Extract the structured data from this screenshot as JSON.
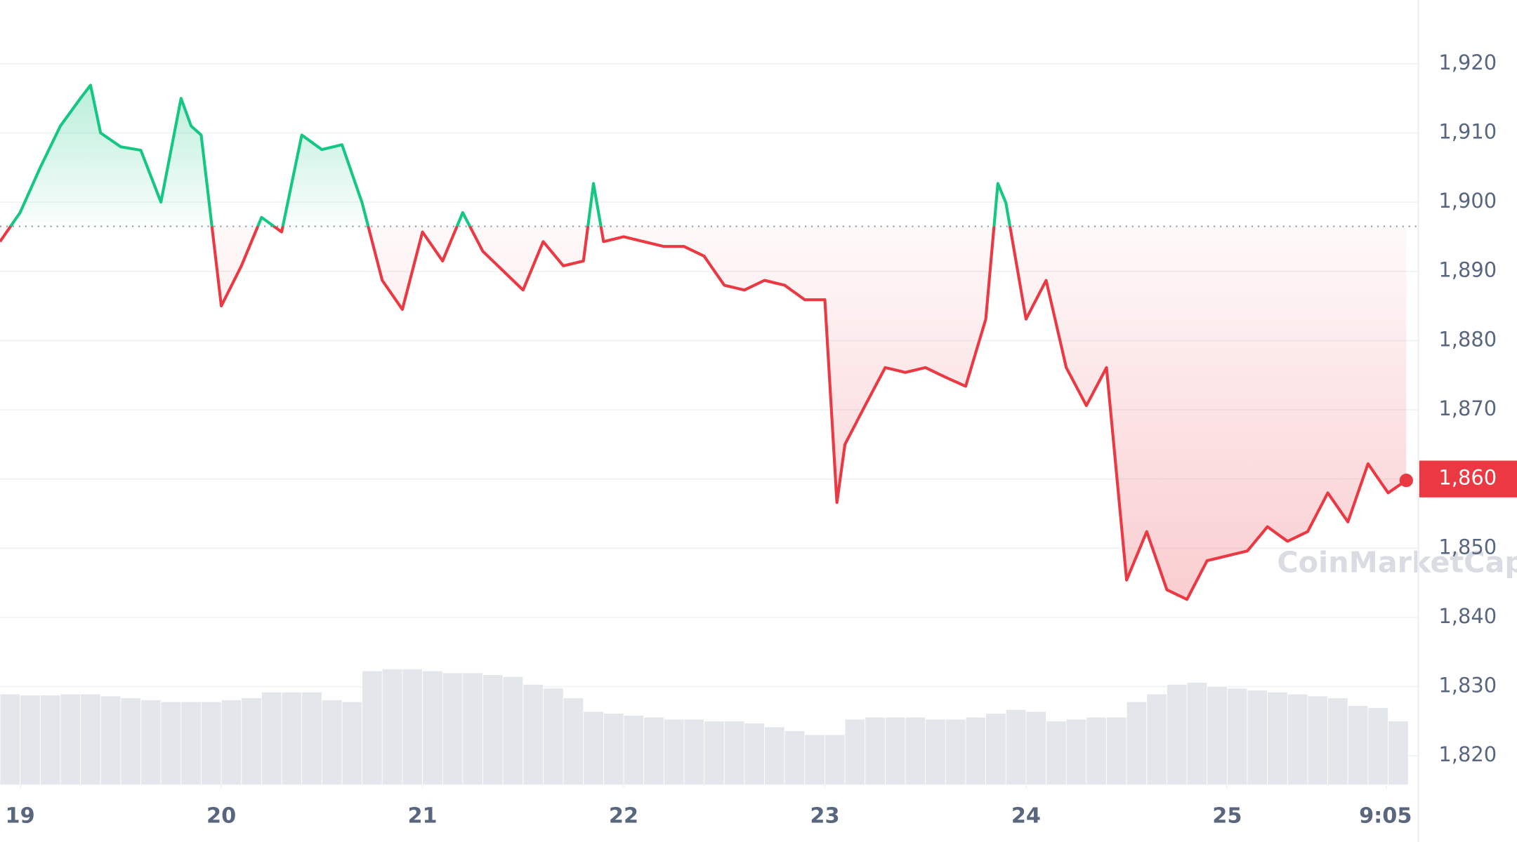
{
  "chart_data": {
    "type": "line",
    "x": [
      18.9,
      19.0,
      19.1,
      19.2,
      19.3,
      19.35,
      19.4,
      19.5,
      19.6,
      19.7,
      19.8,
      19.85,
      19.9,
      20.0,
      20.1,
      20.2,
      20.3,
      20.4,
      20.5,
      20.6,
      20.7,
      20.8,
      20.9,
      21.0,
      21.1,
      21.2,
      21.3,
      21.4,
      21.5,
      21.6,
      21.7,
      21.8,
      21.85,
      21.9,
      22.0,
      22.1,
      22.2,
      22.3,
      22.4,
      22.5,
      22.6,
      22.7,
      22.8,
      22.9,
      23.0,
      23.06,
      23.1,
      23.2,
      23.3,
      23.4,
      23.5,
      23.6,
      23.7,
      23.8,
      23.86,
      23.9,
      24.0,
      24.1,
      24.2,
      24.3,
      24.4,
      24.5,
      24.6,
      24.7,
      24.8,
      24.9,
      25.0,
      25.1,
      25.2,
      25.3,
      25.4,
      25.5,
      25.6,
      25.7,
      25.8,
      25.89
    ],
    "series": [
      {
        "color": "#ea3943",
        "values": [
          1894.3,
          1898.5,
          1905,
          1911,
          1915,
          1916.9,
          1910,
          1908,
          1907.5,
          1900,
          1915,
          1911,
          1909.7,
          1885,
          1890.8,
          1897.8,
          1895.7,
          1909.7,
          1907.6,
          1908.3,
          1899.9,
          1888.7,
          1884.5,
          1895.7,
          1891.5,
          1898.5,
          1892.9,
          1890.1,
          1887.3,
          1894.3,
          1890.8,
          1891.5,
          1902.7,
          1894.3,
          1895,
          1894.3,
          1893.6,
          1893.6,
          1892.2,
          1888,
          1887.3,
          1888.7,
          1888,
          1885.9,
          1885.9,
          1856.6,
          1865,
          1870.6,
          1876.1,
          1875.4,
          1876.1,
          1874.7,
          1873.4,
          1883.1,
          1902.7,
          1899.9,
          1883.1,
          1888.7,
          1876.1,
          1870.6,
          1876.1,
          1845.4,
          1852.4,
          1844,
          1842.6,
          1848.2,
          1848.9,
          1849.6,
          1853.1,
          1851,
          1852.4,
          1858,
          1853.8,
          1862.2,
          1858,
          1859.8
        ]
      }
    ],
    "up_color": "#16c784",
    "baseline": 1896.5,
    "current_price": {
      "value": 1860,
      "label": "1,860"
    },
    "volume": {
      "color": "#e3e6ea",
      "ylim": [
        0,
        130
      ],
      "x": [
        18.9,
        19.0,
        19.1,
        19.2,
        19.3,
        19.4,
        19.5,
        19.6,
        19.7,
        19.8,
        19.9,
        20.0,
        20.1,
        20.2,
        20.3,
        20.4,
        20.5,
        20.6,
        20.7,
        20.8,
        20.9,
        21.0,
        21.1,
        21.2,
        21.3,
        21.4,
        21.5,
        21.6,
        21.7,
        21.8,
        21.9,
        22.0,
        22.1,
        22.2,
        22.3,
        22.4,
        22.5,
        22.6,
        22.7,
        22.8,
        22.9,
        23.0,
        23.1,
        23.2,
        23.3,
        23.4,
        23.5,
        23.6,
        23.7,
        23.8,
        23.9,
        24.0,
        24.1,
        24.2,
        24.3,
        24.4,
        24.5,
        24.6,
        24.7,
        24.8,
        24.9,
        25.0,
        25.1,
        25.2,
        25.3,
        25.4,
        25.5,
        25.6,
        25.7,
        25.8
      ],
      "values": [
        94,
        93,
        93,
        94,
        94,
        92,
        90,
        88,
        86,
        86,
        86,
        88,
        90,
        96,
        96,
        96,
        88,
        86,
        118,
        120,
        120,
        118,
        116,
        116,
        114,
        112,
        104,
        100,
        90,
        76,
        74,
        72,
        70,
        68,
        68,
        66,
        66,
        64,
        60,
        56,
        52,
        52,
        68,
        70,
        70,
        70,
        68,
        68,
        70,
        74,
        78,
        76,
        66,
        68,
        70,
        70,
        86,
        94,
        104,
        106,
        102,
        100,
        98,
        96,
        94,
        92,
        90,
        82,
        80,
        66
      ]
    },
    "xlim": [
      18.9,
      25.95
    ],
    "ylim": [
      1815.8,
      1929.2
    ],
    "xticks": [
      19,
      20,
      21,
      22,
      23,
      24,
      25,
      {
        "value": 25.79,
        "label": "9:05 PM"
      }
    ],
    "yticks": [
      {
        "value": 1820,
        "label": "1,820"
      },
      {
        "value": 1830,
        "label": "1,830"
      },
      {
        "value": 1840,
        "label": "1,840"
      },
      {
        "value": 1850,
        "label": "1,850"
      },
      {
        "value": 1860,
        "label": "1,860"
      },
      {
        "value": 1870,
        "label": "1,870"
      },
      {
        "value": 1880,
        "label": "1,880"
      },
      {
        "value": 1890,
        "label": "1,890"
      },
      {
        "value": 1900,
        "label": "1,900"
      },
      {
        "value": 1910,
        "label": "1,910"
      },
      {
        "value": 1920,
        "label": "1,920"
      }
    ],
    "grid": true,
    "watermark": "CoinMarketCap"
  }
}
